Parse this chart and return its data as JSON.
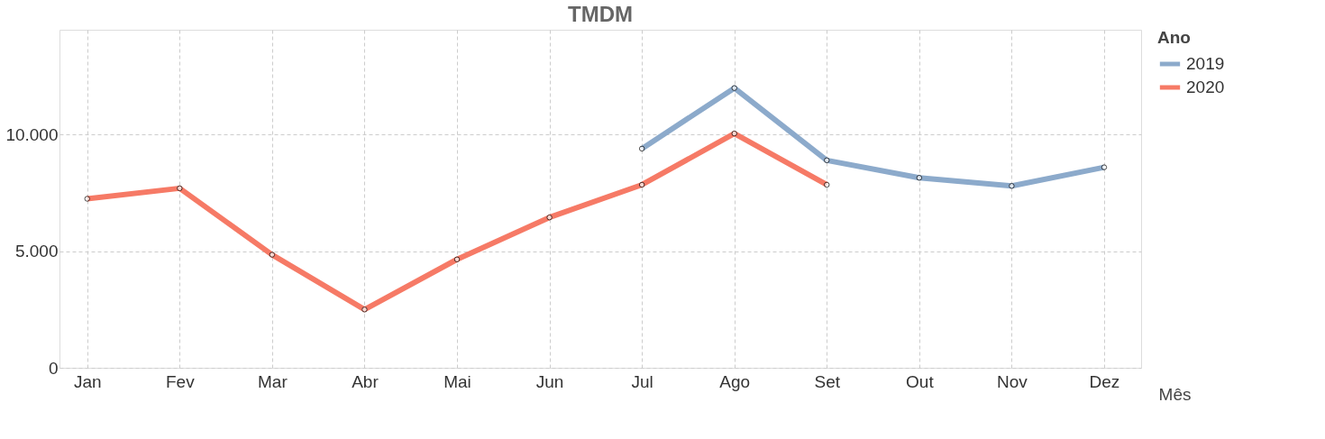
{
  "chart_data": {
    "type": "line",
    "title": "TMDM",
    "xlabel": "Mês",
    "legend_title": "Ano",
    "categories": [
      "Jan",
      "Fev",
      "Mar",
      "Abr",
      "Mai",
      "Jun",
      "Jul",
      "Ago",
      "Set",
      "Out",
      "Nov",
      "Dez"
    ],
    "series": [
      {
        "name": "2019",
        "color": "#8caacb",
        "values": [
          null,
          null,
          null,
          null,
          null,
          null,
          9400,
          12000,
          8900,
          8150,
          7800,
          8600
        ]
      },
      {
        "name": "2020",
        "color": "#f67a66",
        "values": [
          7250,
          7700,
          4850,
          2500,
          4650,
          6450,
          7850,
          10050,
          7850,
          null,
          null,
          null
        ]
      }
    ],
    "ylim": [
      0,
      14500
    ],
    "yticks": [
      {
        "value": 0,
        "label": "0"
      },
      {
        "value": 5000,
        "label": "5.000"
      },
      {
        "value": 10000,
        "label": "10.000"
      }
    ],
    "grid": true,
    "legend": "top right",
    "marker": "circle",
    "line_style": "solid"
  }
}
